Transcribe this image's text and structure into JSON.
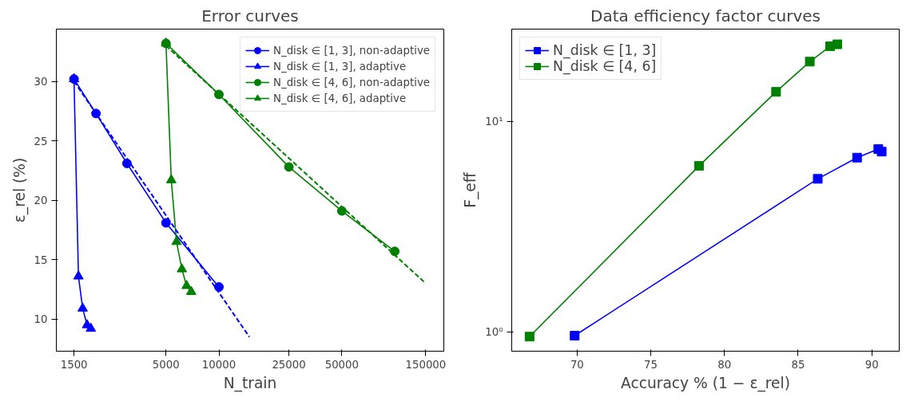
{
  "chart_data": [
    {
      "type": "line",
      "title": "Error curves",
      "xlabel": "N_train",
      "ylabel": "ε_rel (%)",
      "log": "x",
      "xlim": [
        1190,
        190000
      ],
      "xticks": [
        1500,
        5000,
        10000,
        25000,
        50000,
        150000
      ],
      "ylim": [
        7.3,
        34.4
      ],
      "yticks": [
        10,
        15,
        20,
        25,
        30
      ],
      "grid": false,
      "legend": "top right",
      "series": [
        {
          "name": "N_disk ∈ [1, 3], non-adaptive",
          "color": "#0000ff",
          "marker": "circle",
          "line_style": "solid",
          "x": [
            1500,
            2000,
            3000,
            5000,
            10000
          ],
          "values": [
            30.2,
            27.3,
            23.1,
            18.1,
            12.7
          ]
        },
        {
          "name": "N_disk ∈ [1, 3], adaptive",
          "color": "#0000ff",
          "marker": "triangle",
          "line_style": "solid",
          "x": [
            1500,
            1590,
            1680,
            1780,
            1870
          ],
          "values": [
            30.2,
            13.6,
            10.9,
            9.5,
            9.2
          ]
        },
        {
          "name": "N_disk ∈ [4, 6], non-adaptive",
          "color": "#008000",
          "marker": "circle",
          "line_style": "solid",
          "x": [
            5000,
            10000,
            25000,
            50000,
            100000
          ],
          "values": [
            33.2,
            28.9,
            22.8,
            19.1,
            15.7
          ]
        },
        {
          "name": "N_disk ∈ [4, 6], adaptive",
          "color": "#008000",
          "marker": "triangle",
          "line_style": "solid",
          "x": [
            5000,
            5360,
            5740,
            6160,
            6550,
            6960
          ],
          "values": [
            33.2,
            21.7,
            16.5,
            14.2,
            12.8,
            12.3
          ]
        },
        {
          "color": "#0000ff",
          "marker": "none",
          "line_style": "dashed",
          "x": [
            1500,
            14900
          ],
          "values": [
            30.0,
            8.5
          ]
        },
        {
          "color": "#008000",
          "marker": "none",
          "line_style": "dashed",
          "x": [
            5000,
            150000
          ],
          "values": [
            33.0,
            13.0
          ]
        }
      ]
    },
    {
      "type": "line",
      "title": "Data efficiency factor curves",
      "xlabel": "Accuracy % (1 − ε_rel)",
      "ylabel": "F_eff",
      "log": "y",
      "xlim": [
        65.56,
        91.86
      ],
      "xticks": [
        70,
        75,
        80,
        85,
        90
      ],
      "ylim": [
        0.81,
        27.4
      ],
      "yticks": [
        {
          "value": 1,
          "label": "10⁰"
        },
        {
          "value": 10,
          "label": "10¹"
        }
      ],
      "grid": false,
      "legend": "top left",
      "series": [
        {
          "name": "N_disk ∈ [1, 3]",
          "color": "#0000ff",
          "marker": "square",
          "line_style": "solid",
          "x": [
            69.83,
            86.33,
            89.0,
            90.44,
            90.67
          ],
          "values": [
            0.96,
            5.33,
            6.72,
            7.38,
            7.18
          ]
        },
        {
          "name": "N_disk ∈ [4, 6]",
          "color": "#008000",
          "marker": "square",
          "line_style": "solid",
          "x": [
            66.77,
            78.27,
            83.5,
            85.79,
            87.17,
            87.66
          ],
          "values": [
            0.95,
            6.14,
            13.8,
            19.2,
            22.7,
            23.2
          ]
        }
      ]
    }
  ]
}
